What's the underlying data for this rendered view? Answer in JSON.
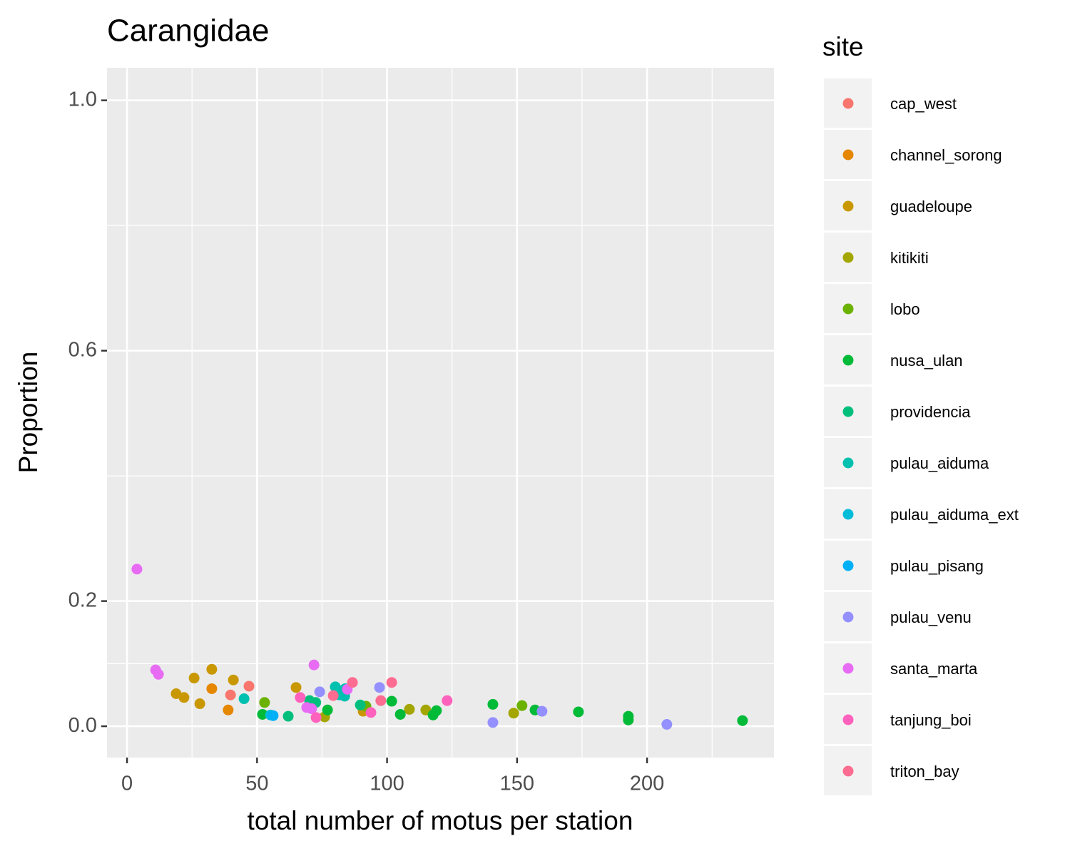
{
  "chart_data": {
    "type": "scatter",
    "title": "Carangidae",
    "x_label": "total number of motus per station",
    "y_label": "Proportion",
    "legend_title": "site",
    "legend_position": "right",
    "grid": true,
    "xlim": [
      -7.7,
      248.8
    ],
    "ylim": [
      -0.05,
      1.052
    ],
    "xticks": [
      0,
      50,
      100,
      150,
      200
    ],
    "yticks": [
      {
        "value": 0,
        "label": "0.0"
      },
      0.2,
      0.6,
      {
        "value": 1,
        "label": "1.0"
      }
    ],
    "series": [
      {
        "name": "cap_west",
        "color": "#F8766D",
        "x": [
          46.9,
          39.8
        ],
        "values": [
          0.064,
          0.05
        ]
      },
      {
        "name": "channel_sorong",
        "color": "#E58700",
        "x": [
          38.9,
          32.6
        ],
        "values": [
          0.026,
          0.06
        ]
      },
      {
        "name": "guadeloupe",
        "color": "#C99800",
        "x": [
          18.9,
          21.9,
          25.8,
          28.0,
          32.6,
          40.9,
          65.0,
          90.8
        ],
        "values": [
          0.052,
          0.046,
          0.077,
          0.036,
          0.091,
          0.074,
          0.062,
          0.024
        ]
      },
      {
        "name": "kitikiti",
        "color": "#A3A500",
        "x": [
          108.6,
          114.9,
          148.7,
          76.0
        ],
        "values": [
          0.027,
          0.026,
          0.021,
          0.015
        ]
      },
      {
        "name": "lobo",
        "color": "#6BB100",
        "x": [
          52.9,
          91.9,
          151.9
        ],
        "values": [
          0.038,
          0.032,
          0.033
        ]
      },
      {
        "name": "nusa_ulan",
        "color": "#00BA38",
        "x": [
          52.1,
          77.1,
          101.8,
          105.1,
          117.7,
          119.0,
          140.7,
          156.9,
          173.6,
          192.8,
          192.8,
          236.7
        ],
        "values": [
          0.019,
          0.026,
          0.04,
          0.019,
          0.018,
          0.025,
          0.035,
          0.026,
          0.023,
          0.016,
          0.01,
          0.009
        ]
      },
      {
        "name": "providencia",
        "color": "#00BF7D",
        "x": [
          62.0,
          70.2,
          72.6,
          89.7
        ],
        "values": [
          0.016,
          0.041,
          0.038,
          0.034
        ]
      },
      {
        "name": "pulau_aiduma",
        "color": "#00C0AF",
        "x": [
          45.0,
          80.1,
          83.9,
          83.7,
          81.7
        ],
        "values": [
          0.044,
          0.063,
          0.06,
          0.048,
          0.05
        ]
      },
      {
        "name": "pulau_aiduma_ext",
        "color": "#00BCD8",
        "x": [
          55.2
        ],
        "values": [
          0.018
        ]
      },
      {
        "name": "pulau_pisang",
        "color": "#00B0F6",
        "x": [
          56.2
        ],
        "values": [
          0.017
        ]
      },
      {
        "name": "pulau_venu",
        "color": "#9590FF",
        "x": [
          74.1,
          97.1,
          140.7,
          159.6,
          207.6
        ],
        "values": [
          0.055,
          0.062,
          0.006,
          0.024,
          0.003
        ]
      },
      {
        "name": "santa_marta",
        "color": "#E76BF3",
        "x": [
          3.8,
          11.0,
          12.1,
          71.9,
          69.1,
          71.0,
          84.7
        ],
        "values": [
          0.251,
          0.09,
          0.083,
          0.098,
          0.03,
          0.028,
          0.059
        ]
      },
      {
        "name": "tanjung_boi",
        "color": "#FF62BC",
        "x": [
          66.6,
          72.7,
          93.8,
          123.1
        ],
        "values": [
          0.046,
          0.014,
          0.022,
          0.041
        ]
      },
      {
        "name": "triton_bay",
        "color": "#FF6C91",
        "x": [
          86.7,
          101.8,
          97.6,
          79.3
        ],
        "values": [
          0.07,
          0.07,
          0.041,
          0.049
        ]
      }
    ]
  }
}
